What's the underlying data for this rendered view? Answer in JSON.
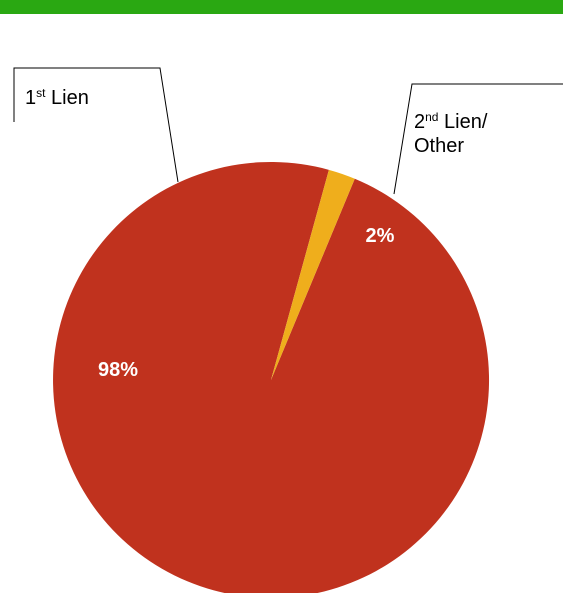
{
  "colors": {
    "header_bar": "#2aa812",
    "first_lien": "#c0321e",
    "second_lien": "#efae1c",
    "leader_line": "#000000"
  },
  "chart_data": {
    "type": "pie",
    "title": "",
    "slices": [
      {
        "name": "1st Lien",
        "label_base": "1",
        "label_sup": "st",
        "label_tail": " Lien",
        "value": 98,
        "data_label": "98%",
        "color": "#c0321e"
      },
      {
        "name": "2nd Lien/ Other",
        "label_base": "2",
        "label_sup": "nd",
        "label_tail": " Lien/",
        "label_line2": "Other",
        "value": 2,
        "data_label": "2%",
        "color": "#efae1c"
      }
    ],
    "legend": "none (callout labels)"
  }
}
